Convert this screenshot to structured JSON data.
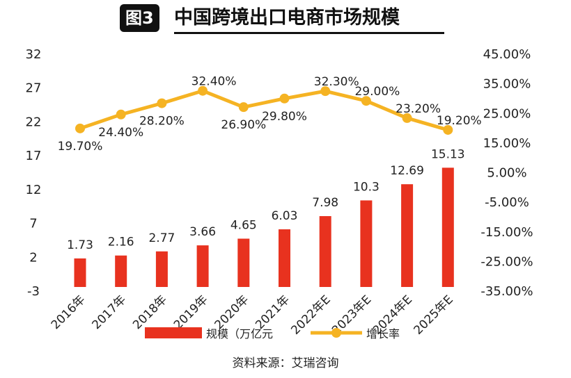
{
  "title": {
    "badge": "图3",
    "text": "中国跨境出口电商市场规模"
  },
  "source": "资料来源：艾瑞咨询",
  "colors": {
    "bar": "#e8321f",
    "line": "#f5b323",
    "text": "#222222"
  },
  "chart_data": {
    "type": "bar+line",
    "categories": [
      "2016年",
      "2017年",
      "2018年",
      "2019年",
      "2020年",
      "2021年",
      "2022年E",
      "2023年E",
      "2024年E",
      "2025年E"
    ],
    "series": [
      {
        "name": "规模（万亿元",
        "type": "bar",
        "axis": "left",
        "values": [
          1.73,
          2.16,
          2.77,
          3.66,
          4.65,
          6.03,
          7.98,
          10.3,
          12.69,
          15.13
        ],
        "labels": [
          "1.73",
          "2.16",
          "2.77",
          "3.66",
          "4.65",
          "6.03",
          "7.98",
          "10.3",
          "12.69",
          "15.13"
        ]
      },
      {
        "name": "增长率",
        "type": "line",
        "axis": "right",
        "values": [
          19.7,
          24.4,
          28.2,
          32.4,
          26.9,
          29.8,
          32.3,
          29.0,
          23.2,
          19.2
        ],
        "labels": [
          "19.70%",
          "24.40%",
          "28.20%",
          "32.40%",
          "26.90%",
          "29.80%",
          "32.30%",
          "29.00%",
          "23.20%",
          "19.20%"
        ]
      }
    ],
    "left_axis": {
      "ticks": [
        "32",
        "27",
        "22",
        "17",
        "12",
        "7",
        "2",
        "-3"
      ],
      "ylim": [
        -3,
        32
      ]
    },
    "right_axis": {
      "ticks": [
        "45.00%",
        "35.00%",
        "25.00%",
        "15.00%",
        "5.00%",
        "-5.00%",
        "-15.00%",
        "-25.00%",
        "-35.00%"
      ],
      "ylim": [
        -35,
        45
      ]
    },
    "legend_position": "bottom",
    "grid": false
  }
}
